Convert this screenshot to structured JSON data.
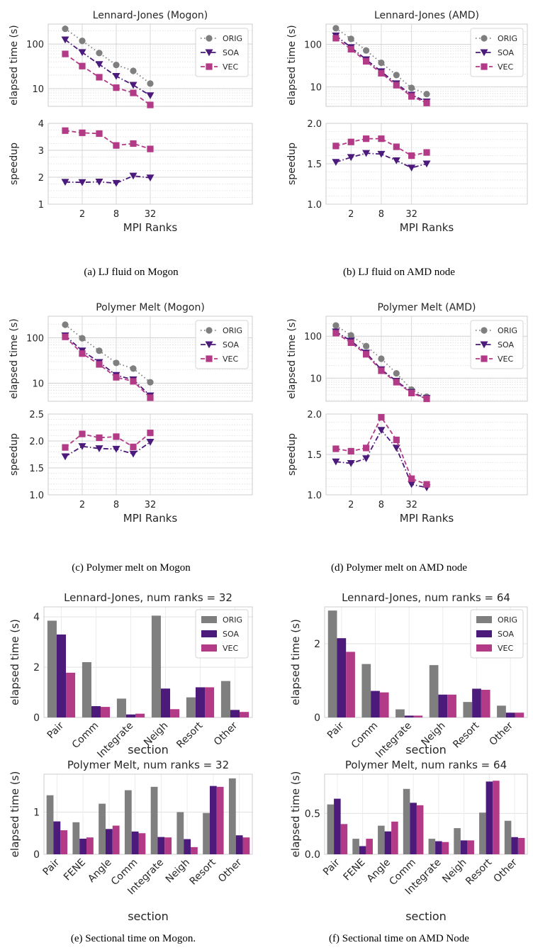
{
  "colors": {
    "orig": "#7f7f7f",
    "soa": "#4b1a7a",
    "vec": "#b33a86"
  },
  "captions": [
    "(a) LJ fluid on Mogon",
    "(b) LJ fluid on AMD node",
    "(c) Polymer melt on Mogon",
    "(d) Polymer melt on AMD node",
    "(e) Sectional time on Mogon.",
    "(f) Sectional time on AMD Node"
  ],
  "chart_data": [
    {
      "type": "line",
      "panel": "a",
      "title": "Lennard-Jones (Mogon)",
      "xlabel": "MPI Ranks",
      "xscale": "log2",
      "x": [
        1,
        2,
        4,
        8,
        16,
        32
      ],
      "xticks": [
        "2",
        "8",
        "32"
      ],
      "top": {
        "ylabel": "elapsed time (s)",
        "yscale": "log",
        "ylim": [
          4,
          280
        ],
        "yticks": [
          10,
          100
        ],
        "ytick_labels": [
          "10",
          "100"
        ],
        "legend": "top-right",
        "series": [
          {
            "name": "ORIG",
            "values": [
              220,
              118,
              63,
              34,
              25,
              13
            ]
          },
          {
            "name": "SOA",
            "values": [
              125,
              65,
              35,
              19,
              12,
              7
            ]
          },
          {
            "name": "VEC",
            "values": [
              60,
              32,
              18,
              10.5,
              8,
              4.3
            ]
          }
        ]
      },
      "bottom": {
        "ylabel": "speedup",
        "ylim": [
          1,
          4
        ],
        "yticks": [
          1,
          2,
          3,
          4
        ],
        "ytick_labels": [
          "1",
          "2",
          "3",
          "4"
        ],
        "series": [
          {
            "name": "SOA",
            "values": [
              1.82,
              1.81,
              1.83,
              1.78,
              2.05,
              1.98
            ]
          },
          {
            "name": "VEC",
            "values": [
              3.73,
              3.65,
              3.62,
              3.18,
              3.25,
              3.05
            ]
          }
        ]
      }
    },
    {
      "type": "line",
      "panel": "b",
      "title": "Lennard-Jones (AMD)",
      "xlabel": "MPI Ranks",
      "xscale": "log2",
      "x": [
        1,
        2,
        4,
        8,
        16,
        32,
        64
      ],
      "xticks": [
        "2",
        "8",
        "32"
      ],
      "top": {
        "ylabel": "elapsed time (s)",
        "yscale": "log",
        "ylim": [
          3.5,
          300
        ],
        "yticks": [
          10,
          100
        ],
        "ytick_labels": [
          "10",
          "100"
        ],
        "legend": "top-right",
        "series": [
          {
            "name": "ORIG",
            "values": [
              240,
              135,
              72,
              37,
              19,
              9.5,
              6.8
            ]
          },
          {
            "name": "SOA",
            "values": [
              160,
              85,
              44,
              23,
              12,
              6.5,
              4.5
            ]
          },
          {
            "name": "VEC",
            "values": [
              140,
              77,
              40,
              21,
              11,
              6,
              4.2
            ]
          }
        ]
      },
      "bottom": {
        "ylabel": "speedup",
        "ylim": [
          1.0,
          2.0
        ],
        "yticks": [
          1.0,
          1.5,
          2.0
        ],
        "ytick_labels": [
          "1.0",
          "1.5",
          "2.0"
        ],
        "series": [
          {
            "name": "SOA",
            "values": [
              1.52,
              1.58,
              1.63,
              1.62,
              1.54,
              1.45,
              1.5
            ]
          },
          {
            "name": "VEC",
            "values": [
              1.72,
              1.77,
              1.81,
              1.81,
              1.71,
              1.6,
              1.64
            ]
          }
        ]
      }
    },
    {
      "type": "line",
      "panel": "c",
      "title": "Polymer Melt (Mogon)",
      "xlabel": "MPI Ranks",
      "xscale": "log2",
      "x": [
        1,
        2,
        4,
        8,
        16,
        32
      ],
      "xticks": [
        "2",
        "8",
        "32"
      ],
      "top": {
        "ylabel": "elapsed time (s)",
        "yscale": "log",
        "ylim": [
          4,
          300
        ],
        "yticks": [
          10,
          100
        ],
        "ytick_labels": [
          "10",
          "100"
        ],
        "legend": "top-right",
        "series": [
          {
            "name": "ORIG",
            "values": [
              195,
              98,
              52,
              28,
              21,
              10.5
            ]
          },
          {
            "name": "SOA",
            "values": [
              112,
              52,
              29,
              15,
              12,
              5.3
            ]
          },
          {
            "name": "VEC",
            "values": [
              105,
              45,
              26,
              13.5,
              11,
              4.8
            ]
          }
        ]
      },
      "bottom": {
        "ylabel": "speedup",
        "ylim": [
          1.0,
          2.5
        ],
        "yticks": [
          1.0,
          1.5,
          2.0,
          2.5
        ],
        "ytick_labels": [
          "1.0",
          "1.5",
          "2.0",
          "2.5"
        ],
        "series": [
          {
            "name": "SOA",
            "values": [
              1.71,
              1.9,
              1.86,
              1.85,
              1.76,
              1.98
            ]
          },
          {
            "name": "VEC",
            "values": [
              1.88,
              2.13,
              2.06,
              2.08,
              1.89,
              2.15
            ]
          }
        ]
      }
    },
    {
      "type": "line",
      "panel": "d",
      "title": "Polymer Melt (AMD)",
      "xlabel": "MPI Ranks",
      "xscale": "log2",
      "x": [
        1,
        2,
        4,
        8,
        16,
        32,
        64
      ],
      "xticks": [
        "2",
        "8",
        "32"
      ],
      "top": {
        "ylabel": "elapsed time (s)",
        "yscale": "log",
        "ylim": [
          2.8,
          300
        ],
        "yticks": [
          10,
          100
        ],
        "ytick_labels": [
          "10",
          "100"
        ],
        "legend": "top-right",
        "series": [
          {
            "name": "ORIG",
            "values": [
              180,
              105,
              58,
              29,
              13,
              5.3,
              3.6
            ]
          },
          {
            "name": "SOA",
            "values": [
              128,
              77,
              40,
              16,
              8.5,
              4.6,
              3.3
            ]
          },
          {
            "name": "VEC",
            "values": [
              118,
              70,
              37,
              15,
              8,
              4.4,
              3.2
            ]
          }
        ]
      },
      "bottom": {
        "ylabel": "speedup",
        "ylim": [
          1.0,
          2.0
        ],
        "yticks": [
          1.0,
          1.5,
          2.0
        ],
        "ytick_labels": [
          "1.0",
          "1.5",
          "2.0"
        ],
        "series": [
          {
            "name": "SOA",
            "values": [
              1.41,
              1.39,
              1.45,
              1.8,
              1.58,
              1.13,
              1.09
            ]
          },
          {
            "name": "VEC",
            "values": [
              1.57,
              1.54,
              1.58,
              1.96,
              1.68,
              1.2,
              1.13
            ]
          }
        ]
      }
    },
    {
      "type": "bar",
      "panel": "e1",
      "title": "Lennard-Jones, num ranks = 32",
      "xlabel": "section",
      "ylabel": "elapsed time (s)",
      "ylim": [
        0,
        4.4
      ],
      "yticks": [
        0,
        2,
        4
      ],
      "ytick_labels": [
        "0",
        "2",
        "4"
      ],
      "legend": "top-right",
      "categories": [
        "Pair",
        "Comm",
        "Integrate",
        "Neigh",
        "Resort",
        "Other"
      ],
      "series": [
        {
          "name": "ORIG",
          "values": [
            3.85,
            2.2,
            0.75,
            4.05,
            0.8,
            1.45
          ]
        },
        {
          "name": "SOA",
          "values": [
            3.3,
            0.45,
            0.12,
            1.15,
            1.2,
            0.3
          ]
        },
        {
          "name": "VEC",
          "values": [
            1.78,
            0.42,
            0.15,
            0.33,
            1.2,
            0.22
          ]
        }
      ]
    },
    {
      "type": "bar",
      "panel": "f1",
      "title": "Lennard-Jones, num ranks = 64",
      "xlabel": "section",
      "ylabel": "elapsed time (s)",
      "ylim": [
        0,
        3.0
      ],
      "yticks": [
        0,
        2
      ],
      "ytick_labels": [
        "0",
        "2"
      ],
      "legend": "top-right",
      "categories": [
        "Pair",
        "Comm",
        "Integrate",
        "Neigh",
        "Resort",
        "Other"
      ],
      "series": [
        {
          "name": "ORIG",
          "values": [
            2.9,
            1.45,
            0.22,
            1.42,
            0.42,
            0.32
          ]
        },
        {
          "name": "SOA",
          "values": [
            2.15,
            0.72,
            0.05,
            0.62,
            0.78,
            0.13
          ]
        },
        {
          "name": "VEC",
          "values": [
            1.78,
            0.68,
            0.05,
            0.62,
            0.75,
            0.13
          ]
        }
      ]
    },
    {
      "type": "bar",
      "panel": "e2",
      "title": "Polymer Melt, num ranks = 32",
      "xlabel": "section",
      "ylabel": "elapsed time (s)",
      "ylim": [
        0,
        1.9
      ],
      "yticks": [
        0,
        1
      ],
      "ytick_labels": [
        "0",
        "1"
      ],
      "categories": [
        "Pair",
        "FENE",
        "Angle",
        "Comm",
        "Integrate",
        "Neigh",
        "Resort",
        "Other"
      ],
      "series": [
        {
          "name": "ORIG",
          "values": [
            1.4,
            0.76,
            1.2,
            1.52,
            1.6,
            1.0,
            0.98,
            1.8
          ]
        },
        {
          "name": "SOA",
          "values": [
            0.78,
            0.37,
            0.6,
            0.54,
            0.41,
            0.36,
            1.62,
            0.45
          ]
        },
        {
          "name": "VEC",
          "values": [
            0.57,
            0.4,
            0.68,
            0.5,
            0.4,
            0.17,
            1.6,
            0.4
          ]
        }
      ]
    },
    {
      "type": "bar",
      "panel": "f2",
      "title": "Polymer Melt, num ranks = 64",
      "xlabel": "section",
      "ylabel": "elapsed time (s)",
      "ylim": [
        0,
        0.98
      ],
      "yticks": [
        0,
        0.5
      ],
      "ytick_labels": [
        "0.0",
        "0.5"
      ],
      "categories": [
        "Pair",
        "FENE",
        "Angle",
        "Comm",
        "Integrate",
        "Neigh",
        "Resort",
        "Other"
      ],
      "series": [
        {
          "name": "ORIG",
          "values": [
            0.61,
            0.19,
            0.35,
            0.8,
            0.19,
            0.32,
            0.51,
            0.41
          ]
        },
        {
          "name": "SOA",
          "values": [
            0.68,
            0.1,
            0.28,
            0.63,
            0.16,
            0.17,
            0.89,
            0.21
          ]
        },
        {
          "name": "VEC",
          "values": [
            0.37,
            0.19,
            0.4,
            0.6,
            0.15,
            0.17,
            0.9,
            0.2
          ]
        }
      ]
    }
  ]
}
